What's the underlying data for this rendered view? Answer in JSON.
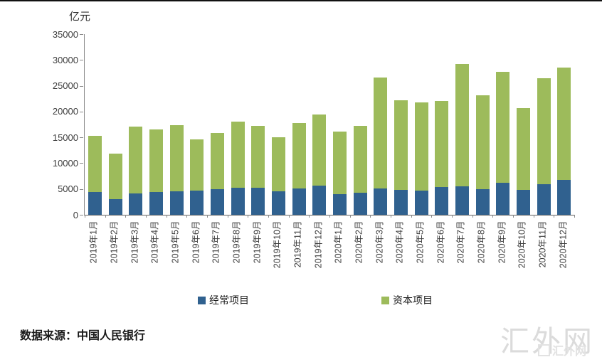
{
  "unit_label": "亿元",
  "chart_data": {
    "type": "bar",
    "stacked": true,
    "title": "",
    "ylabel": "亿元",
    "xlabel": "",
    "ylim": [
      0,
      35000
    ],
    "yticks": [
      0,
      5000,
      10000,
      15000,
      20000,
      25000,
      30000,
      35000
    ],
    "grid": false,
    "legend_position": "bottom-center",
    "categories": [
      "2019年1月",
      "2019年2月",
      "2019年3月",
      "2019年4月",
      "2019年5月",
      "2019年6月",
      "2019年7月",
      "2019年8月",
      "2019年9月",
      "2019年10月",
      "2019年11月",
      "2019年12月",
      "2020年1月",
      "2020年2月",
      "2020年3月",
      "2020年4月",
      "2020年5月",
      "2020年6月",
      "2020年7月",
      "2020年8月",
      "2020年9月",
      "2020年10月",
      "2020年11月",
      "2020年12月"
    ],
    "series": [
      {
        "name": "经常项目",
        "color": "#30618F",
        "values": [
          4400,
          3050,
          4200,
          4400,
          4500,
          4750,
          4900,
          5200,
          5300,
          4550,
          5100,
          5650,
          4000,
          4300,
          5100,
          4800,
          4750,
          5350,
          5550,
          4950,
          6200,
          4850,
          5950,
          6750
        ]
      },
      {
        "name": "资本项目",
        "color": "#9DBB5B",
        "values": [
          10900,
          8850,
          12900,
          12100,
          12800,
          9850,
          11000,
          12800,
          11950,
          10450,
          12750,
          13750,
          12100,
          12900,
          21550,
          17350,
          17050,
          16650,
          23650,
          18150,
          21500,
          15800,
          20500,
          21750
        ]
      }
    ]
  },
  "source_note": "数据来源：中国人民银行",
  "watermark": {
    "main": "汇外网",
    "logo_text": "汇外网"
  },
  "colors": {
    "axis_line": "#8a8a8a",
    "tick_label": "#3d3d3d",
    "top_border": "#111111",
    "background": "#ffffff"
  }
}
